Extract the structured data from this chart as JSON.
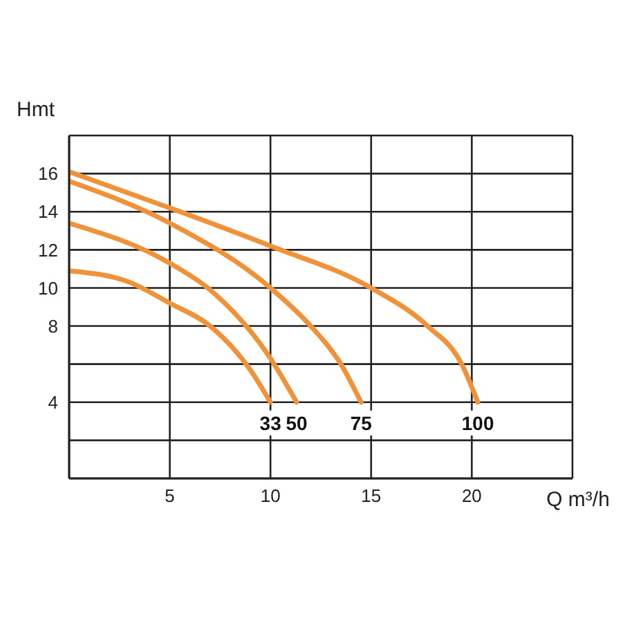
{
  "chart_data": {
    "type": "line",
    "xlabel": "Q m³/h",
    "ylabel": "Hmt",
    "xlim": [
      0,
      25
    ],
    "ylim": [
      0,
      18
    ],
    "xticks": [
      {
        "value": 0,
        "label": null
      },
      5,
      10,
      15,
      20,
      {
        "value": 25,
        "label": null
      }
    ],
    "yticks": [
      {
        "value": 0,
        "label": null
      },
      {
        "value": 2,
        "label": null
      },
      4,
      {
        "value": 6,
        "label": null
      },
      8,
      10,
      12,
      14,
      16,
      {
        "value": 18,
        "label": null
      }
    ],
    "grid": true,
    "legend": false,
    "marker": "none",
    "line_style": "solid",
    "series": [
      {
        "name": "33",
        "color": "#f0923a",
        "x": [
          0,
          3,
          5,
          7,
          9,
          10
        ],
        "values": [
          10.9,
          10.3,
          9.2,
          8,
          5.7,
          4
        ]
      },
      {
        "name": "50",
        "color": "#f0923a",
        "x": [
          0,
          5,
          7,
          10,
          11.3
        ],
        "values": [
          13.4,
          11.3,
          9.9,
          6.3,
          4
        ]
      },
      {
        "name": "75",
        "color": "#f0923a",
        "x": [
          0,
          5,
          10,
          12,
          13.5,
          14.5
        ],
        "values": [
          15.6,
          13.4,
          10,
          8,
          6,
          4
        ]
      },
      {
        "name": "100",
        "color": "#f0923a",
        "x": [
          0,
          5,
          10,
          15,
          17.8,
          19.5,
          20.3
        ],
        "values": [
          16.1,
          14.2,
          12.2,
          10,
          8,
          6,
          4
        ]
      }
    ]
  }
}
